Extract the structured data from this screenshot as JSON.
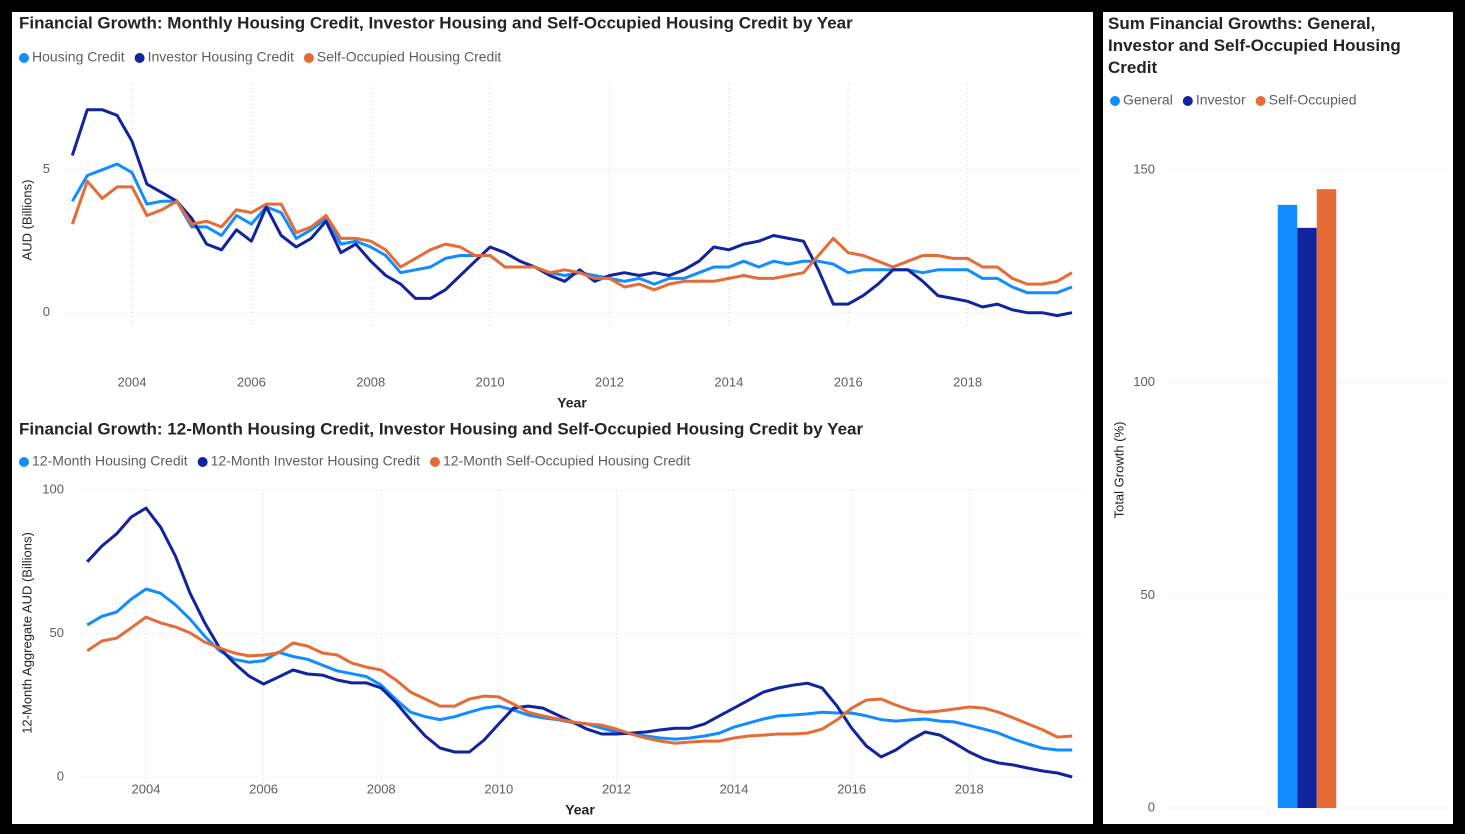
{
  "chart_data": [
    {
      "type": "line",
      "title": "Financial Growth: Monthly Housing Credit, Investor Housing and Self-Occupied Housing Credit by Year",
      "x_label": "Year",
      "y_label": "AUD (Billions)",
      "x": [
        2003,
        2003.25,
        2003.5,
        2003.75,
        2004,
        2004.25,
        2004.5,
        2004.75,
        2005,
        2005.25,
        2005.5,
        2005.75,
        2006,
        2006.25,
        2006.5,
        2006.75,
        2007,
        2007.25,
        2007.5,
        2007.75,
        2008,
        2008.25,
        2008.5,
        2008.75,
        2009,
        2009.25,
        2009.5,
        2009.75,
        2010,
        2010.25,
        2010.5,
        2010.75,
        2011,
        2011.25,
        2011.5,
        2011.75,
        2012,
        2012.25,
        2012.5,
        2012.75,
        2013,
        2013.25,
        2013.5,
        2013.75,
        2014,
        2014.25,
        2014.5,
        2014.75,
        2015,
        2015.25,
        2015.5,
        2015.75,
        2016,
        2016.25,
        2016.5,
        2016.75,
        2017,
        2017.25,
        2017.5,
        2017.75,
        2018,
        2018.25,
        2018.5,
        2018.75,
        2019,
        2019.25,
        2019.5,
        2019.75
      ],
      "series": [
        {
          "name": "Housing Credit",
          "color": "#118DFF",
          "values": [
            3.9,
            4.8,
            5.0,
            5.2,
            4.9,
            3.8,
            3.9,
            3.9,
            3.0,
            3.0,
            2.7,
            3.4,
            3.1,
            3.7,
            3.5,
            2.6,
            2.9,
            3.3,
            2.4,
            2.5,
            2.3,
            2.0,
            1.4,
            1.5,
            1.6,
            1.9,
            2.0,
            2.0,
            2.0,
            1.6,
            1.6,
            1.6,
            1.4,
            1.3,
            1.4,
            1.3,
            1.2,
            1.1,
            1.2,
            1.0,
            1.2,
            1.2,
            1.4,
            1.6,
            1.6,
            1.8,
            1.6,
            1.8,
            1.7,
            1.8,
            1.8,
            1.7,
            1.4,
            1.5,
            1.5,
            1.5,
            1.5,
            1.4,
            1.5,
            1.5,
            1.5,
            1.2,
            1.2,
            0.9,
            0.7,
            0.7,
            0.7,
            0.9
          ]
        },
        {
          "name": "Investor Housing Credit",
          "color": "#12239E",
          "values": [
            5.5,
            7.1,
            7.1,
            6.9,
            6.0,
            4.5,
            4.2,
            3.9,
            3.3,
            2.4,
            2.2,
            2.9,
            2.5,
            3.7,
            2.7,
            2.3,
            2.6,
            3.2,
            2.1,
            2.4,
            1.8,
            1.3,
            1.0,
            0.5,
            0.5,
            0.8,
            1.3,
            1.8,
            2.3,
            2.1,
            1.8,
            1.6,
            1.3,
            1.1,
            1.5,
            1.1,
            1.3,
            1.4,
            1.3,
            1.4,
            1.3,
            1.5,
            1.8,
            2.3,
            2.2,
            2.4,
            2.5,
            2.7,
            2.6,
            2.5,
            1.5,
            0.3,
            0.3,
            0.6,
            1.0,
            1.5,
            1.5,
            1.1,
            0.6,
            0.5,
            0.4,
            0.2,
            0.3,
            0.1,
            0.0,
            0.0,
            -0.1,
            0.0
          ]
        },
        {
          "name": "Self-Occupied Housing Credit",
          "color": "#E66C37",
          "values": [
            3.1,
            4.6,
            4.0,
            4.4,
            4.4,
            3.4,
            3.6,
            3.9,
            3.1,
            3.2,
            3.0,
            3.6,
            3.5,
            3.8,
            3.8,
            2.8,
            3.0,
            3.4,
            2.6,
            2.6,
            2.5,
            2.2,
            1.6,
            1.9,
            2.2,
            2.4,
            2.3,
            2.0,
            2.0,
            1.6,
            1.6,
            1.6,
            1.4,
            1.5,
            1.4,
            1.2,
            1.2,
            0.9,
            1.0,
            0.8,
            1.0,
            1.1,
            1.1,
            1.1,
            1.2,
            1.3,
            1.2,
            1.2,
            1.3,
            1.4,
            2.0,
            2.6,
            2.1,
            2.0,
            1.8,
            1.6,
            1.8,
            2.0,
            2.0,
            1.9,
            1.9,
            1.6,
            1.6,
            1.2,
            1.0,
            1.0,
            1.1,
            1.4
          ]
        }
      ],
      "xlim": [
        2002.8,
        2019.9
      ],
      "xticks": [
        2004,
        2006,
        2008,
        2010,
        2012,
        2014,
        2016,
        2018
      ],
      "ylim": [
        -0.5,
        8
      ],
      "yticks": [
        0,
        5
      ],
      "grid": true
    },
    {
      "type": "line",
      "title": "Financial Growth: 12-Month Housing Credit, Investor Housing and Self-Occupied Housing Credit by Year",
      "x_label": "Year",
      "y_label": "12-Month Aggregate AUD (Billions)",
      "x": [
        2003,
        2003.25,
        2003.5,
        2003.75,
        2004,
        2004.25,
        2004.5,
        2004.75,
        2005,
        2005.25,
        2005.5,
        2005.75,
        2006,
        2006.25,
        2006.5,
        2006.75,
        2007,
        2007.25,
        2007.5,
        2007.75,
        2008,
        2008.25,
        2008.5,
        2008.75,
        2009,
        2009.25,
        2009.5,
        2009.75,
        2010,
        2010.25,
        2010.5,
        2010.75,
        2011,
        2011.25,
        2011.5,
        2011.75,
        2012,
        2012.25,
        2012.5,
        2012.75,
        2013,
        2013.25,
        2013.5,
        2013.75,
        2014,
        2014.25,
        2014.5,
        2014.75,
        2015,
        2015.25,
        2015.5,
        2015.75,
        2016,
        2016.25,
        2016.5,
        2016.75,
        2017,
        2017.25,
        2017.5,
        2017.75,
        2018,
        2018.25,
        2018.5,
        2018.75,
        2019,
        2019.25,
        2019.5,
        2019.75
      ],
      "series": [
        {
          "name": "12-Month Housing Credit",
          "color": "#118DFF",
          "values": [
            53,
            56,
            57.5,
            62,
            65.5,
            64,
            60,
            55,
            49,
            44,
            41,
            40,
            40.5,
            43.5,
            42,
            41,
            39,
            37,
            36,
            35,
            32,
            27,
            22.6,
            21,
            20,
            21,
            22.6,
            24,
            24.7,
            23.3,
            21.6,
            20.6,
            20,
            19,
            18.5,
            17,
            15.7,
            15,
            14.3,
            13.6,
            13.2,
            13.6,
            14.3,
            15.3,
            17.4,
            18.8,
            20.2,
            21.3,
            21.6,
            22,
            22.6,
            22.3,
            22.3,
            21.3,
            20,
            19.5,
            19.9,
            20.2,
            19.5,
            19.2,
            18,
            16.7,
            15.3,
            13.2,
            11.5,
            10,
            9.4,
            9.4
          ]
        },
        {
          "name": "12-Month Investor Housing Credit",
          "color": "#12239E",
          "values": [
            75,
            80.5,
            84.7,
            90.6,
            93.7,
            87,
            77,
            64,
            53.7,
            45,
            39.7,
            35.2,
            32.4,
            34.8,
            37.3,
            35.9,
            35.5,
            33.8,
            32.8,
            32.8,
            31,
            26,
            19.9,
            14.3,
            10.1,
            8.7,
            8.7,
            12.9,
            18.5,
            24,
            24.7,
            24,
            21.6,
            19.2,
            16.7,
            15,
            15,
            15.3,
            15.7,
            16.4,
            17,
            17,
            18.5,
            21.3,
            24,
            26.8,
            29.6,
            31,
            32,
            32.7,
            31,
            24.7,
            17,
            10.8,
            7,
            9.4,
            12.9,
            15.7,
            14.6,
            11.8,
            8.7,
            6.3,
            4.9,
            4.2,
            3.1,
            2.1,
            1.4,
            0
          ]
        },
        {
          "name": "12-Month Self-Occupied Housing Credit",
          "color": "#E66C37",
          "values": [
            44,
            47.4,
            48.4,
            52,
            55.7,
            53.7,
            52.3,
            50.2,
            47,
            45,
            43.2,
            42.2,
            42.5,
            43.2,
            46.7,
            45.6,
            43.2,
            42.5,
            39.7,
            38.3,
            37.3,
            33.8,
            29.6,
            27.2,
            24.7,
            24.7,
            27.2,
            28.2,
            27.9,
            25.4,
            22.6,
            21.3,
            20.2,
            19.2,
            18.5,
            18.1,
            16.7,
            15,
            13.6,
            12.5,
            11.8,
            12.2,
            12.5,
            12.5,
            13.6,
            14.3,
            14.6,
            15,
            15,
            15.3,
            16.7,
            19.9,
            24,
            26.8,
            27.2,
            25.1,
            23.3,
            22.6,
            23,
            23.7,
            24.4,
            24,
            22.6,
            20.6,
            18.5,
            16.4,
            13.9,
            14.3
          ]
        }
      ],
      "xlim": [
        2002.8,
        2019.9
      ],
      "xticks": [
        2004,
        2006,
        2008,
        2010,
        2012,
        2014,
        2016,
        2018
      ],
      "ylim": [
        -4,
        100
      ],
      "yticks": [
        0,
        50,
        100
      ],
      "grid": true
    },
    {
      "type": "bar",
      "title": "Sum Financial Growths: General, Investor and Self-Occupied Housing Credit",
      "y_label": "Total Growth (%)",
      "categories": [
        null
      ],
      "series": [
        {
          "name": "General",
          "color": "#118DFF",
          "values": [
            141.8
          ]
        },
        {
          "name": "Investor",
          "color": "#12239E",
          "values": [
            136.4
          ]
        },
        {
          "name": "Self-Occupied",
          "color": "#E66C37",
          "values": [
            145.5
          ]
        }
      ],
      "ylim": [
        0,
        150
      ],
      "yticks": [
        0,
        50,
        100,
        150
      ],
      "grid": true
    }
  ]
}
